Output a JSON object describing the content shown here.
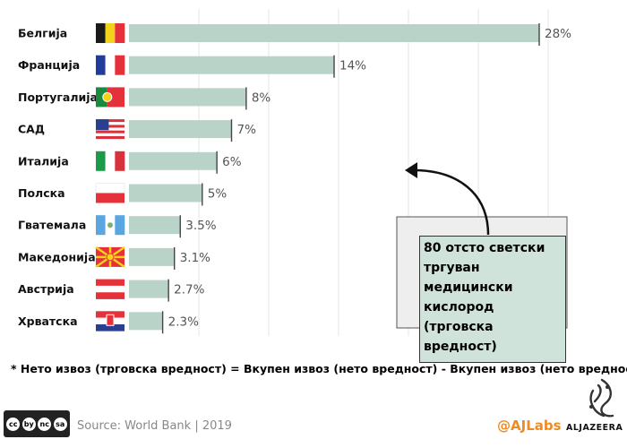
{
  "chart_data": {
    "type": "bar",
    "orientation": "horizontal",
    "categories": [
      "Белгија",
      "Франција",
      "Португалија",
      "САД",
      "Италија",
      "Полска",
      "Гватемала",
      "Македонија",
      "Австрија",
      "Хрватска"
    ],
    "values": [
      28,
      14,
      8,
      7,
      6,
      5,
      3.5,
      3.1,
      2.7,
      2.3
    ],
    "value_labels": [
      "28%",
      "14%",
      "8%",
      "7%",
      "6%",
      "5%",
      "3.5%",
      "3.1%",
      "2.7%",
      "2.3%"
    ],
    "flags": [
      "belgium-flag",
      "france-flag",
      "portugal-flag",
      "usa-flag",
      "italy-flag",
      "poland-flag",
      "guatemala-flag",
      "macedonia-flag",
      "austria-flag",
      "croatia-flag"
    ],
    "xlim": [
      0,
      28
    ],
    "bar_color": "#b9d3c8",
    "grid": true
  },
  "annotation": {
    "text": "80 отсто светски тргуван медицински кислород (трговска вредност)",
    "box_color": "#cfe3da"
  },
  "footnote": "* Нето извоз (трговска вредност) = Вкупен извоз (нето вредност) - Вкупен извоз (нето вредност)",
  "footer": {
    "license_badge": [
      "cc",
      "by",
      "nc",
      "sa"
    ],
    "license_icon": "creative-commons-icon",
    "source": "Source: World Bank | 2019",
    "handle": "@AJLabs",
    "logo_text": "ALJAZEERA",
    "handle_color": "#f08a24"
  }
}
